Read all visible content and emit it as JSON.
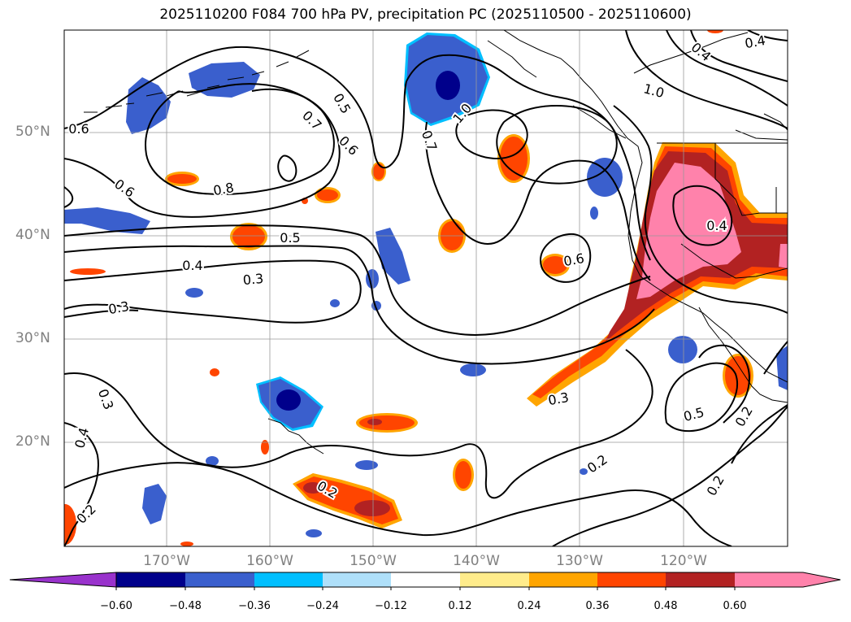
{
  "title": "2025110200 F084 700 hPa PV, precipitation PC (2025110500 - 2025110600)",
  "lat_labels": [
    "50°N",
    "40°N",
    "30°N",
    "20°N"
  ],
  "lon_labels": [
    "170°W",
    "160°W",
    "150°W",
    "140°W",
    "130°W",
    "120°W"
  ],
  "colorbar": {
    "ticks": [
      "−0.60",
      "−0.48",
      "−0.36",
      "−0.24",
      "−0.12",
      "0.12",
      "0.24",
      "0.36",
      "0.48",
      "0.60"
    ],
    "colors": [
      "#9932cc",
      "#00008b",
      "#3a5fcd",
      "#00bfff",
      "#afe0fa",
      "#ffffff",
      "#ffec8b",
      "#ffa500",
      "#ff4500",
      "#b22222",
      "#ff82ab"
    ]
  },
  "contour_labels": [
    "0.6",
    "0.5",
    "0.7",
    "0.6",
    "1.0",
    "0.7",
    "0.8",
    "0.6",
    "0.5",
    "0.4",
    "0.3",
    "0.3",
    "1.0",
    "0.4",
    "0.4",
    "0.6",
    "0.3",
    "0.4",
    "0.3",
    "0.2",
    "0.5",
    "0.2",
    "0.2",
    "0.4",
    "0.2",
    "0.2"
  ]
}
